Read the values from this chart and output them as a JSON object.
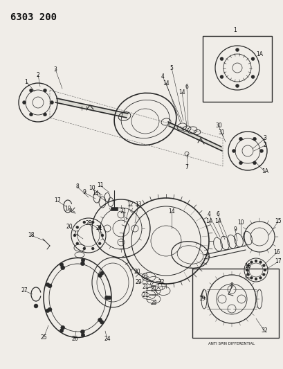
{
  "title": "6303 200",
  "bg": "#f0ede8",
  "lc": "#2a2a2a",
  "title_fs": 10,
  "label_fs": 5.5,
  "anti_spin_text": "ANTI SPIN DIFFERENTIAL",
  "fig_w": 4.1,
  "fig_h": 5.33,
  "dpi": 100
}
